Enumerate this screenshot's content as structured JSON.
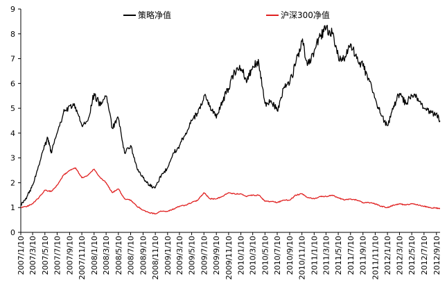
{
  "chart_data": {
    "type": "line",
    "title": "",
    "xlabel": "",
    "ylabel": "",
    "ylim": [
      0,
      9
    ],
    "yticks": [
      "0",
      "1",
      "2",
      "3",
      "4",
      "5",
      "6",
      "7",
      "8",
      "9"
    ],
    "xticks": [
      "2007/1/10",
      "2007/3/10",
      "2007/5/10",
      "2007/7/10",
      "2007/9/10",
      "2007/11/10",
      "2008/1/10",
      "2008/3/10",
      "2008/5/10",
      "2008/7/10",
      "2008/9/10",
      "2008/11/10",
      "2009/1/10",
      "2009/3/10",
      "2009/5/10",
      "2009/7/10",
      "2009/9/10",
      "2009/11/10",
      "2010/1/10",
      "2010/3/10",
      "2010/5/10",
      "2010/7/10",
      "2010/9/10",
      "2010/11/10",
      "2011/1/10",
      "2011/3/10",
      "2011/5/10",
      "2011/7/10",
      "2011/9/10",
      "2011/11/10",
      "2012/1/10",
      "2012/3/10",
      "2012/5/10",
      "2012/7/10",
      "2012/9/10"
    ],
    "grid": false,
    "legend": "top-center",
    "series": [
      {
        "name": "策略净值",
        "color": "#000000",
        "points": [
          [
            "2007/1/10",
            1.1
          ],
          [
            "2007/2/10",
            1.45
          ],
          [
            "2007/3/10",
            1.9
          ],
          [
            "2007/4/10",
            2.7
          ],
          [
            "2007/5/10",
            3.5
          ],
          [
            "2007/5/25",
            3.8
          ],
          [
            "2007/6/10",
            3.2
          ],
          [
            "2007/7/10",
            4.0
          ],
          [
            "2007/8/10",
            4.8
          ],
          [
            "2007/9/10",
            5.1
          ],
          [
            "2007/10/10",
            5.05
          ],
          [
            "2007/11/10",
            4.3
          ],
          [
            "2007/12/10",
            4.5
          ],
          [
            "2008/1/10",
            5.6
          ],
          [
            "2008/2/10",
            5.1
          ],
          [
            "2008/3/10",
            5.5
          ],
          [
            "2008/4/10",
            4.2
          ],
          [
            "2008/5/10",
            4.6
          ],
          [
            "2008/6/10",
            3.2
          ],
          [
            "2008/7/10",
            3.5
          ],
          [
            "2008/8/10",
            2.6
          ],
          [
            "2008/9/10",
            2.2
          ],
          [
            "2008/10/10",
            1.9
          ],
          [
            "2008/11/10",
            1.8
          ],
          [
            "2008/12/10",
            2.3
          ],
          [
            "2009/1/10",
            2.6
          ],
          [
            "2009/2/10",
            3.2
          ],
          [
            "2009/3/10",
            3.5
          ],
          [
            "2009/4/10",
            4.0
          ],
          [
            "2009/5/10",
            4.5
          ],
          [
            "2009/6/10",
            4.8
          ],
          [
            "2009/7/10",
            5.5
          ],
          [
            "2009/8/10",
            5.1
          ],
          [
            "2009/9/10",
            4.6
          ],
          [
            "2009/10/10",
            5.3
          ],
          [
            "2009/11/10",
            5.8
          ],
          [
            "2009/12/10",
            6.5
          ],
          [
            "2010/1/10",
            6.6
          ],
          [
            "2010/2/10",
            6.1
          ],
          [
            "2010/3/10",
            6.7
          ],
          [
            "2010/4/10",
            6.8
          ],
          [
            "2010/5/10",
            5.2
          ],
          [
            "2010/6/10",
            5.3
          ],
          [
            "2010/7/10",
            4.9
          ],
          [
            "2010/8/10",
            5.8
          ],
          [
            "2010/9/10",
            6.0
          ],
          [
            "2010/10/10",
            6.8
          ],
          [
            "2010/11/10",
            7.7
          ],
          [
            "2010/12/10",
            6.8
          ],
          [
            "2011/1/10",
            7.3
          ],
          [
            "2011/2/10",
            7.9
          ],
          [
            "2011/3/10",
            8.2
          ],
          [
            "2011/4/10",
            8.0
          ],
          [
            "2011/5/10",
            7.1
          ],
          [
            "2011/6/10",
            6.9
          ],
          [
            "2011/7/10",
            7.6
          ],
          [
            "2011/8/10",
            7.0
          ],
          [
            "2011/9/10",
            6.7
          ],
          [
            "2011/10/10",
            6.2
          ],
          [
            "2011/11/10",
            5.4
          ],
          [
            "2011/12/10",
            4.7
          ],
          [
            "2012/1/10",
            4.3
          ],
          [
            "2012/2/10",
            5.1
          ],
          [
            "2012/3/10",
            5.6
          ],
          [
            "2012/4/10",
            5.2
          ],
          [
            "2012/5/10",
            5.5
          ],
          [
            "2012/6/10",
            5.4
          ],
          [
            "2012/7/10",
            5.0
          ],
          [
            "2012/8/10",
            4.8
          ],
          [
            "2012/9/10",
            4.8
          ],
          [
            "2012/9/28",
            4.5
          ]
        ]
      },
      {
        "name": "沪深300净值",
        "color": "#e02020",
        "points": [
          [
            "2007/1/10",
            1.0
          ],
          [
            "2007/2/10",
            1.05
          ],
          [
            "2007/3/10",
            1.15
          ],
          [
            "2007/4/10",
            1.4
          ],
          [
            "2007/5/10",
            1.7
          ],
          [
            "2007/6/10",
            1.65
          ],
          [
            "2007/7/10",
            1.9
          ],
          [
            "2007/8/10",
            2.3
          ],
          [
            "2007/9/10",
            2.5
          ],
          [
            "2007/10/10",
            2.6
          ],
          [
            "2007/11/10",
            2.2
          ],
          [
            "2007/12/10",
            2.3
          ],
          [
            "2008/1/10",
            2.55
          ],
          [
            "2008/2/10",
            2.2
          ],
          [
            "2008/3/10",
            2.0
          ],
          [
            "2008/4/10",
            1.6
          ],
          [
            "2008/5/10",
            1.75
          ],
          [
            "2008/6/10",
            1.35
          ],
          [
            "2008/7/10",
            1.3
          ],
          [
            "2008/8/10",
            1.05
          ],
          [
            "2008/9/10",
            0.9
          ],
          [
            "2008/10/10",
            0.8
          ],
          [
            "2008/11/10",
            0.75
          ],
          [
            "2008/12/10",
            0.85
          ],
          [
            "2009/1/10",
            0.85
          ],
          [
            "2009/2/10",
            0.95
          ],
          [
            "2009/3/10",
            1.05
          ],
          [
            "2009/4/10",
            1.1
          ],
          [
            "2009/5/10",
            1.2
          ],
          [
            "2009/6/10",
            1.3
          ],
          [
            "2009/7/10",
            1.6
          ],
          [
            "2009/8/10",
            1.35
          ],
          [
            "2009/9/10",
            1.35
          ],
          [
            "2009/10/10",
            1.45
          ],
          [
            "2009/11/10",
            1.6
          ],
          [
            "2009/12/10",
            1.55
          ],
          [
            "2010/1/10",
            1.55
          ],
          [
            "2010/2/10",
            1.45
          ],
          [
            "2010/3/10",
            1.5
          ],
          [
            "2010/4/10",
            1.5
          ],
          [
            "2010/5/10",
            1.25
          ],
          [
            "2010/6/10",
            1.25
          ],
          [
            "2010/7/10",
            1.2
          ],
          [
            "2010/8/10",
            1.3
          ],
          [
            "2010/9/10",
            1.3
          ],
          [
            "2010/10/10",
            1.5
          ],
          [
            "2010/11/10",
            1.55
          ],
          [
            "2010/12/10",
            1.4
          ],
          [
            "2011/1/10",
            1.35
          ],
          [
            "2011/2/10",
            1.45
          ],
          [
            "2011/3/10",
            1.45
          ],
          [
            "2011/4/10",
            1.5
          ],
          [
            "2011/5/10",
            1.4
          ],
          [
            "2011/6/10",
            1.3
          ],
          [
            "2011/7/10",
            1.35
          ],
          [
            "2011/8/10",
            1.3
          ],
          [
            "2011/9/10",
            1.2
          ],
          [
            "2011/10/10",
            1.2
          ],
          [
            "2011/11/10",
            1.15
          ],
          [
            "2011/12/10",
            1.05
          ],
          [
            "2012/1/10",
            1.0
          ],
          [
            "2012/2/10",
            1.1
          ],
          [
            "2012/3/10",
            1.15
          ],
          [
            "2012/4/10",
            1.1
          ],
          [
            "2012/5/10",
            1.15
          ],
          [
            "2012/6/10",
            1.1
          ],
          [
            "2012/7/10",
            1.05
          ],
          [
            "2012/8/10",
            1.0
          ],
          [
            "2012/9/10",
            0.98
          ],
          [
            "2012/9/28",
            0.96
          ]
        ]
      }
    ]
  }
}
